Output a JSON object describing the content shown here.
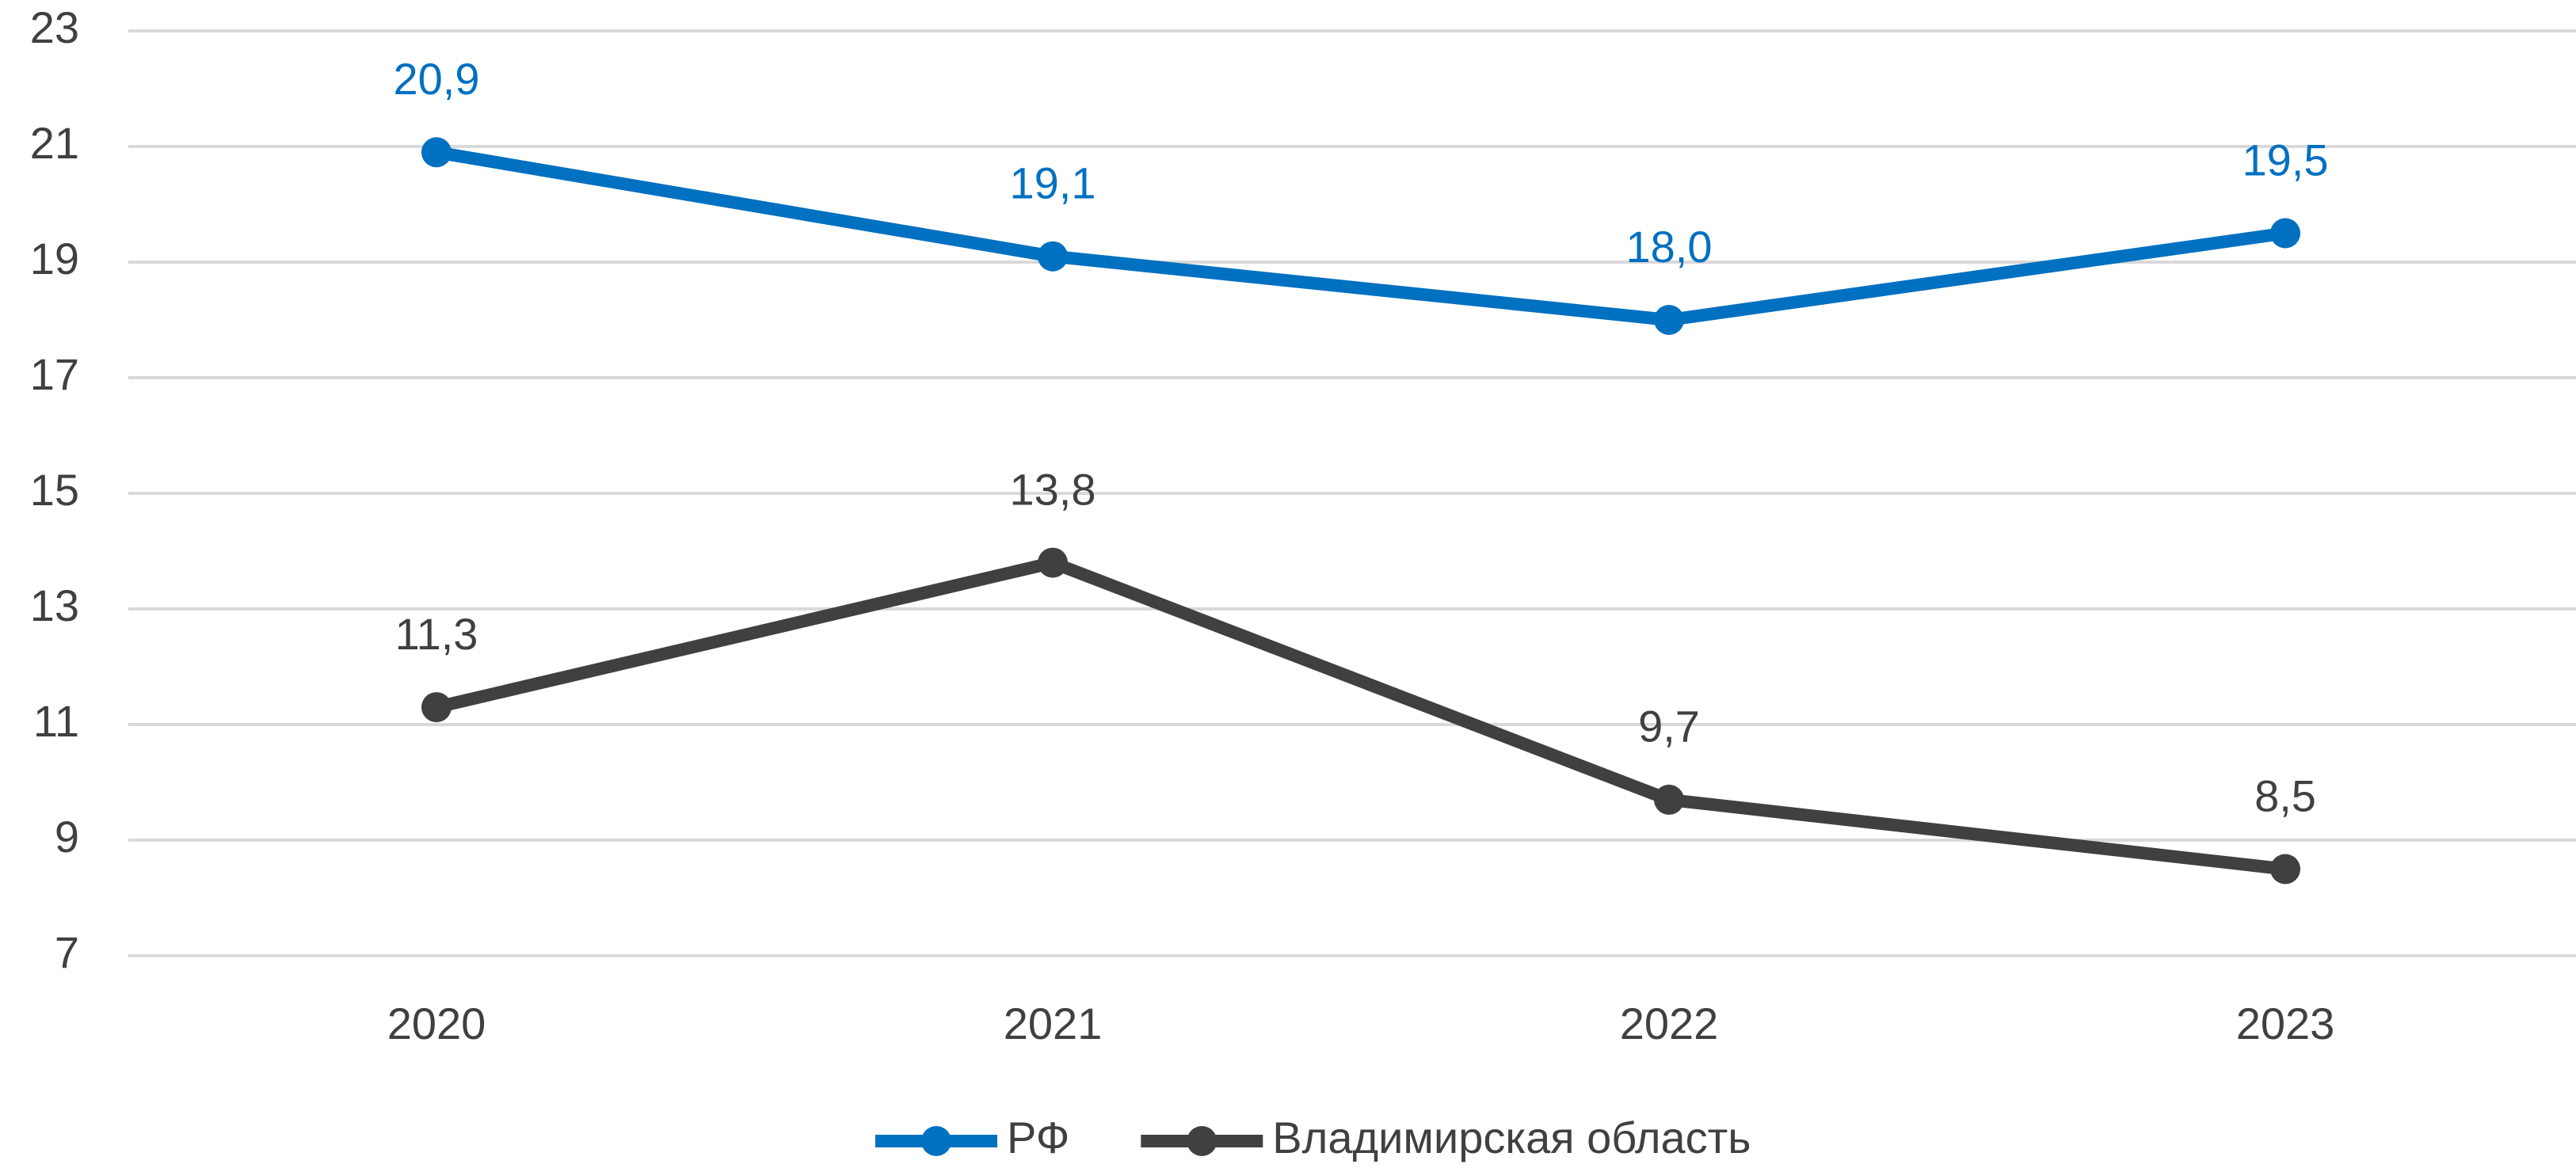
{
  "chart_data": {
    "type": "line",
    "categories": [
      "2020",
      "2021",
      "2022",
      "2023"
    ],
    "series": [
      {
        "name": "РФ",
        "color": "#0070c0",
        "values": [
          20.9,
          19.1,
          18.0,
          19.5
        ],
        "value_labels": [
          "20,9",
          "19,1",
          "18,0",
          "19,5"
        ]
      },
      {
        "name": "Владимирская область",
        "color": "#404040",
        "values": [
          11.3,
          13.8,
          9.7,
          8.5
        ],
        "value_labels": [
          "11,3",
          "13,8",
          "9,7",
          "8,5"
        ]
      }
    ],
    "ylim": [
      7,
      23
    ],
    "yticks": [
      7,
      9,
      11,
      13,
      15,
      17,
      19,
      21,
      23
    ],
    "grid": true,
    "legend": "bottom"
  }
}
